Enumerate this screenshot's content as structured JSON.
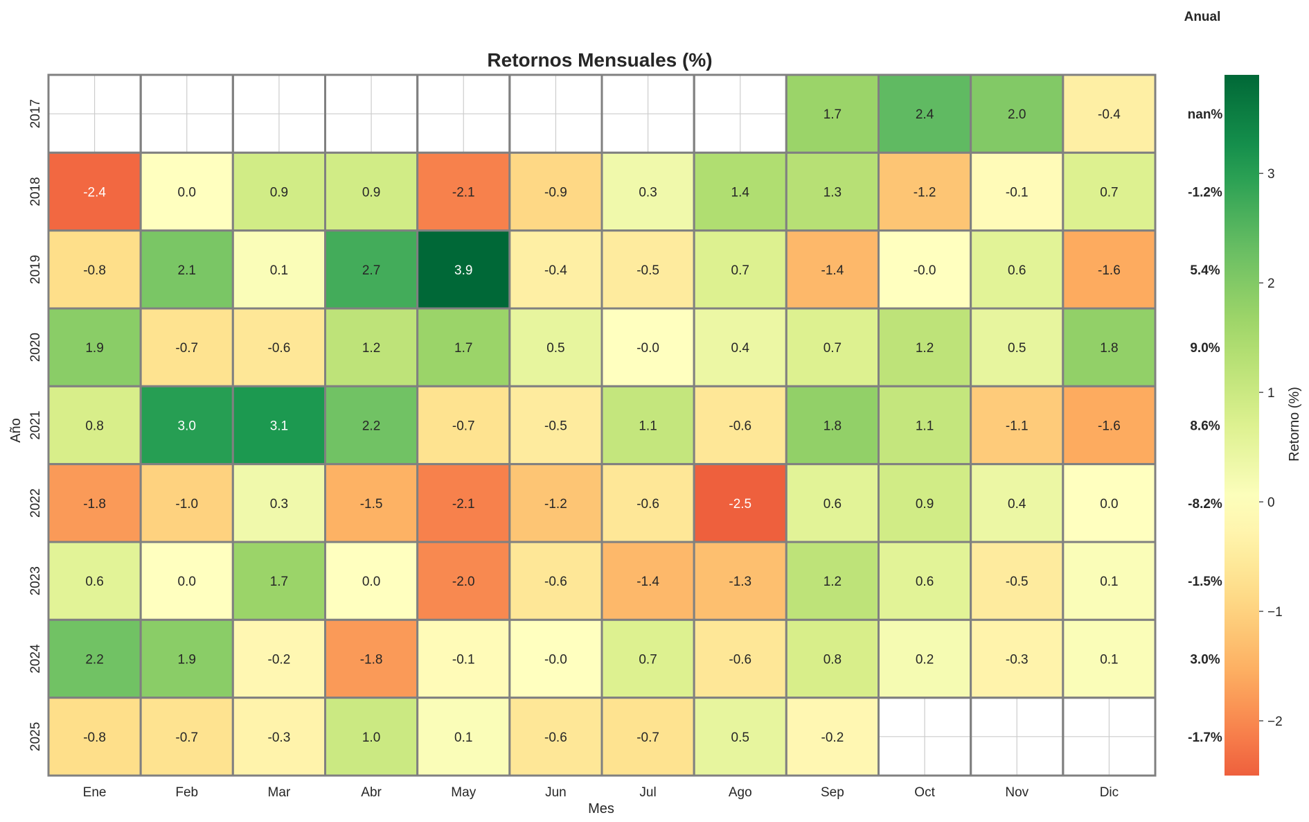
{
  "chart_data": {
    "type": "heatmap",
    "title": "Retornos Mensuales (%)",
    "xlabel": "Mes",
    "ylabel": "Año",
    "x_categories": [
      "Ene",
      "Feb",
      "Mar",
      "Abr",
      "May",
      "Jun",
      "Jul",
      "Ago",
      "Sep",
      "Oct",
      "Nov",
      "Dic"
    ],
    "y_categories": [
      "2017",
      "2018",
      "2019",
      "2020",
      "2021",
      "2022",
      "2023",
      "2024",
      "2025"
    ],
    "values": [
      [
        null,
        null,
        null,
        null,
        null,
        null,
        null,
        null,
        1.7,
        2.4,
        2.0,
        -0.4
      ],
      [
        -2.4,
        0.0,
        0.9,
        0.9,
        -2.1,
        -0.9,
        0.3,
        1.4,
        1.3,
        -1.2,
        -0.1,
        0.7
      ],
      [
        -0.8,
        2.1,
        0.1,
        2.7,
        3.9,
        -0.4,
        -0.5,
        0.7,
        -1.4,
        -0.0,
        0.6,
        -1.6
      ],
      [
        1.9,
        -0.7,
        -0.6,
        1.2,
        1.7,
        0.5,
        -0.0,
        0.4,
        0.7,
        1.2,
        0.5,
        1.8
      ],
      [
        0.8,
        3.0,
        3.1,
        2.2,
        -0.7,
        -0.5,
        1.1,
        -0.6,
        1.8,
        1.1,
        -1.1,
        -1.6
      ],
      [
        -1.8,
        -1.0,
        0.3,
        -1.5,
        -2.1,
        -1.2,
        -0.6,
        -2.5,
        0.6,
        0.9,
        0.4,
        0.0
      ],
      [
        0.6,
        0.0,
        1.7,
        0.0,
        -2.0,
        -0.6,
        -1.4,
        -1.3,
        1.2,
        0.6,
        -0.5,
        0.1
      ],
      [
        2.2,
        1.9,
        -0.2,
        -1.8,
        -0.1,
        -0.0,
        0.7,
        -0.6,
        0.8,
        0.2,
        -0.3,
        0.1
      ],
      [
        -0.8,
        -0.7,
        -0.3,
        1.0,
        0.1,
        -0.6,
        -0.7,
        0.5,
        -0.2,
        null,
        null,
        null
      ]
    ],
    "cell_labels": [
      [
        "",
        "",
        "",
        "",
        "",
        "",
        "",
        "",
        "1.7",
        "2.4",
        "2.0",
        "-0.4"
      ],
      [
        "-2.4",
        "0.0",
        "0.9",
        "0.9",
        "-2.1",
        "-0.9",
        "0.3",
        "1.4",
        "1.3",
        "-1.2",
        "-0.1",
        "0.7"
      ],
      [
        "-0.8",
        "2.1",
        "0.1",
        "2.7",
        "3.9",
        "-0.4",
        "-0.5",
        "0.7",
        "-1.4",
        "-0.0",
        "0.6",
        "-1.6"
      ],
      [
        "1.9",
        "-0.7",
        "-0.6",
        "1.2",
        "1.7",
        "0.5",
        "-0.0",
        "0.4",
        "0.7",
        "1.2",
        "0.5",
        "1.8"
      ],
      [
        "0.8",
        "3.0",
        "3.1",
        "2.2",
        "-0.7",
        "-0.5",
        "1.1",
        "-0.6",
        "1.8",
        "1.1",
        "-1.1",
        "-1.6"
      ],
      [
        "-1.8",
        "-1.0",
        "0.3",
        "-1.5",
        "-2.1",
        "-1.2",
        "-0.6",
        "-2.5",
        "0.6",
        "0.9",
        "0.4",
        "0.0"
      ],
      [
        "0.6",
        "0.0",
        "1.7",
        "0.0",
        "-2.0",
        "-0.6",
        "-1.4",
        "-1.3",
        "1.2",
        "0.6",
        "-0.5",
        "0.1"
      ],
      [
        "2.2",
        "1.9",
        "-0.2",
        "-1.8",
        "-0.1",
        "-0.0",
        "0.7",
        "-0.6",
        "0.8",
        "0.2",
        "-0.3",
        "0.1"
      ],
      [
        "-0.8",
        "-0.7",
        "-0.3",
        "1.0",
        "0.1",
        "-0.6",
        "-0.7",
        "0.5",
        "-0.2",
        "",
        "",
        ""
      ]
    ],
    "annual_header": "Anual",
    "annual": [
      "nan%",
      "-1.2%",
      "5.4%",
      "9.0%",
      "8.6%",
      "-8.2%",
      "-1.5%",
      "3.0%",
      "-1.7%"
    ],
    "colormap": "RdYlGn",
    "center": 0,
    "vmin": -2.5,
    "vmax": 3.9,
    "colorbar": {
      "label": "Retorno (%)",
      "ticks": [
        -2,
        -1,
        0,
        1,
        2,
        3
      ],
      "tick_labels": [
        "−2",
        "−1",
        "0",
        "1",
        "2",
        "3"
      ]
    },
    "grid": true,
    "cell_border_color": "#808080"
  }
}
